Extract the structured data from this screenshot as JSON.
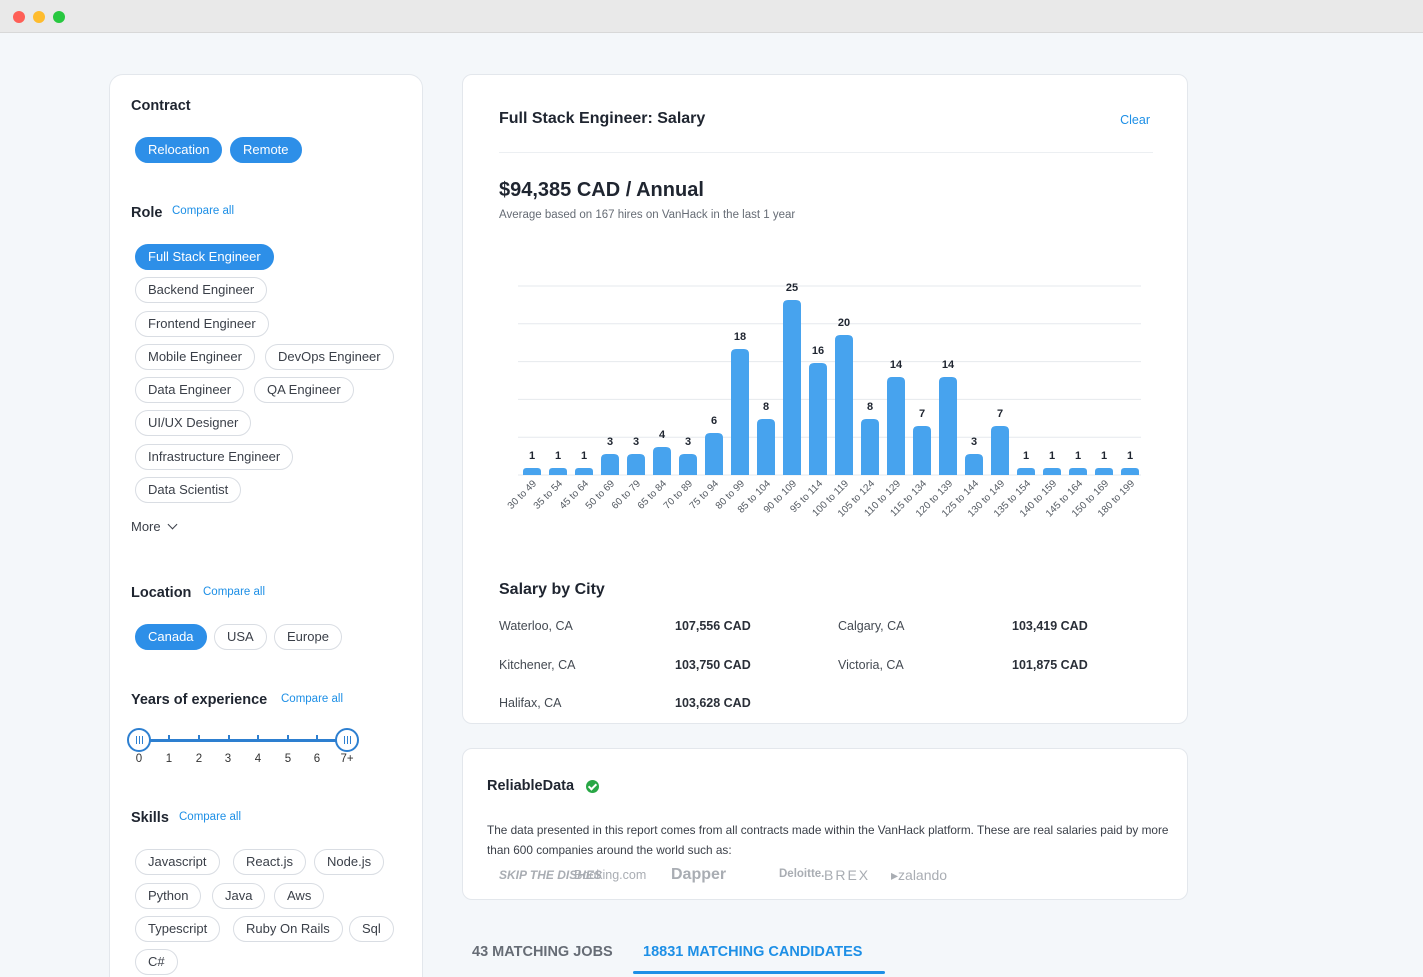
{
  "sidebar": {
    "contract": {
      "title": "Contract",
      "chips": [
        "Relocation",
        "Remote"
      ]
    },
    "role": {
      "title": "Role",
      "compare": "Compare all",
      "chips": [
        "Full Stack Engineer",
        "Backend Engineer",
        "Frontend Engineer",
        "Mobile Engineer",
        "DevOps Engineer",
        "Data Engineer",
        "QA Engineer",
        "UI/UX Designer",
        "Infrastructure Engineer",
        "Data Scientist"
      ],
      "selected": "Full Stack Engineer",
      "more": "More"
    },
    "location": {
      "title": "Location",
      "compare": "Compare all",
      "chips": [
        "Canada",
        "USA",
        "Europe"
      ],
      "selected": "Canada"
    },
    "experience": {
      "title": "Years of experience",
      "compare": "Compare all",
      "labels": [
        "0",
        "1",
        "2",
        "3",
        "4",
        "5",
        "6",
        "7+"
      ],
      "range": [
        "0",
        "7+"
      ]
    },
    "skills": {
      "title": "Skills",
      "compare": "Compare all",
      "chips": [
        "Javascript",
        "React.js",
        "Node.js",
        "Python",
        "Java",
        "Aws",
        "Typescript",
        "Ruby On Rails",
        "Sql",
        "C#"
      ]
    }
  },
  "salary": {
    "title": "Full Stack Engineer: Salary",
    "clear": "Clear",
    "amount": "$94,385 CAD / Annual",
    "subtitle": "Average based on 167 hires on VanHack in the last 1 year",
    "accent": "#47a3ee"
  },
  "chart_data": {
    "type": "bar",
    "title": "",
    "xlabel": "",
    "ylabel": "",
    "ylim": [
      0,
      25
    ],
    "grid": true,
    "categories": [
      "30 to 49",
      "35 to 54",
      "45 to 64",
      "50 to 69",
      "60 to 79",
      "65 to 84",
      "70 to 89",
      "75 to 94",
      "80 to 99",
      "85 to 104",
      "90 to 109",
      "95 to 114",
      "100 to 119",
      "105 to 124",
      "110 to 129",
      "115 to 134",
      "120 to 139",
      "125 to 144",
      "130 to 149",
      "135 to 154",
      "140 to 159",
      "145 to 164",
      "150 to 169",
      "180 to 199"
    ],
    "values": [
      1,
      1,
      1,
      3,
      3,
      4,
      3,
      6,
      18,
      8,
      25,
      16,
      20,
      8,
      14,
      7,
      14,
      3,
      7,
      1,
      1,
      1,
      1,
      1
    ]
  },
  "cities": {
    "title": "Salary by City",
    "rows": [
      {
        "name": "Waterloo, CA",
        "value": "107,556 CAD"
      },
      {
        "name": "Calgary, CA",
        "value": "103,419 CAD"
      },
      {
        "name": "Kitchener, CA",
        "value": "103,750 CAD"
      },
      {
        "name": "Victoria, CA",
        "value": "101,875 CAD"
      },
      {
        "name": "Halifax, CA",
        "value": "103,628 CAD"
      }
    ]
  },
  "reliable": {
    "title": "ReliableData",
    "text": "The data presented in this report comes from all contracts made within the VanHack platform. These are real salaries paid by more than 600 companies around the world such as:",
    "logos": [
      "SKIP THE DISHES",
      "Booking.com",
      "Dapper",
      "Deloitte.",
      "BREX",
      "zalando"
    ]
  },
  "tabs": {
    "jobs": "43 MATCHING JOBS",
    "candidates": "18831 MATCHING CANDIDATES"
  }
}
